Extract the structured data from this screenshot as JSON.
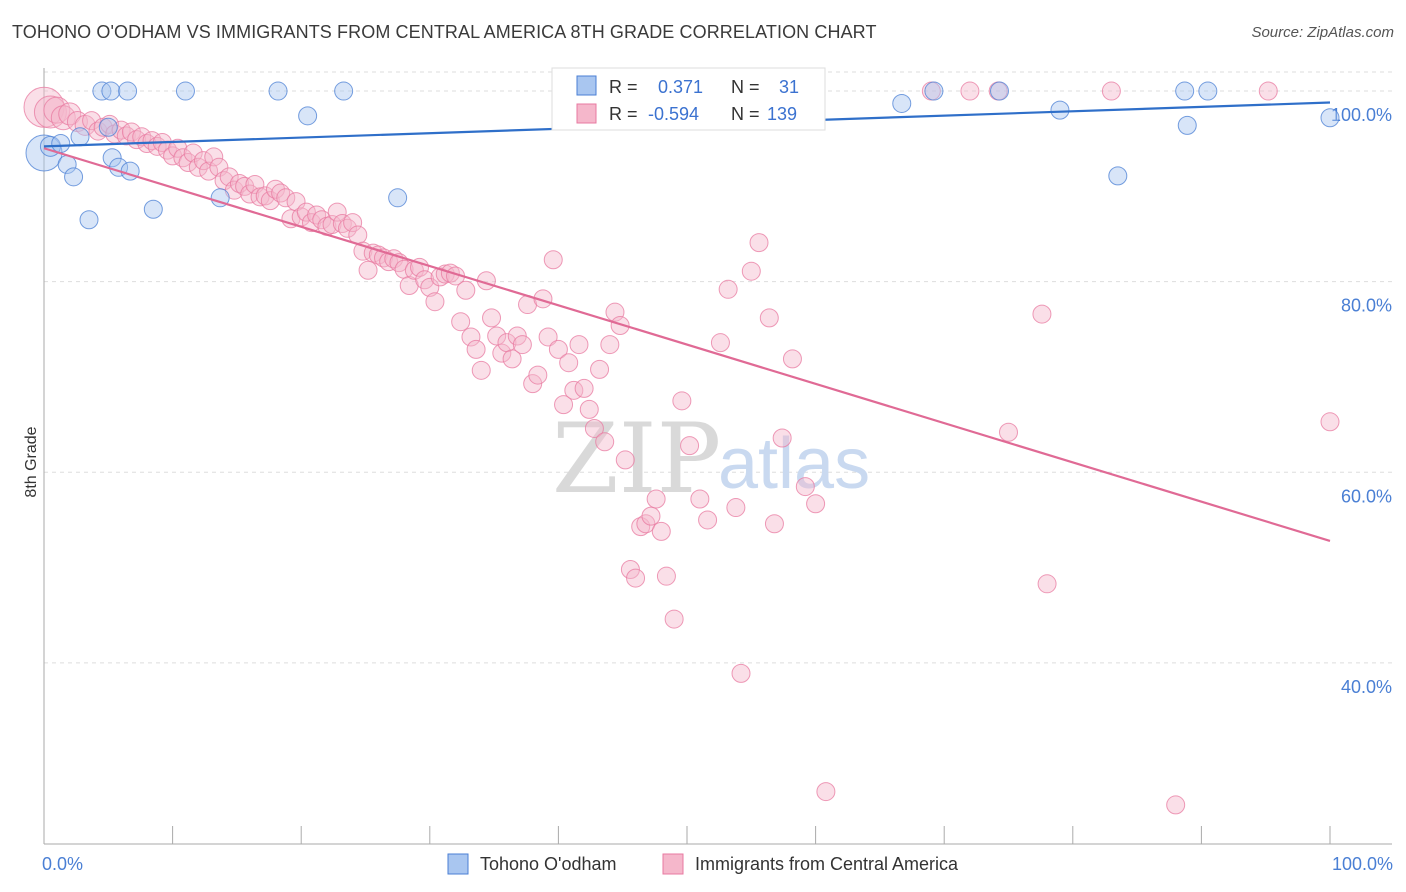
{
  "title": "TOHONO O'ODHAM VS IMMIGRANTS FROM CENTRAL AMERICA 8TH GRADE CORRELATION CHART",
  "source": "Source: ZipAtlas.com",
  "watermark": {
    "zip": "ZIP",
    "atlas": "atlas"
  },
  "colors": {
    "blue": "#4a7fd4",
    "blue_fill": "#a9c6f0",
    "blue_line": "#2f6fc9",
    "pink": "#e87aa0",
    "pink_fill": "#f5b7cb",
    "pink_line": "#e06a95",
    "grid": "#dddddd"
  },
  "stats": {
    "r_label": "R =",
    "n_label": "N =",
    "blue": {
      "r": "0.371",
      "n": "31"
    },
    "pink": {
      "r": "-0.594",
      "n": "139"
    }
  },
  "legend": {
    "blue": "Tohono O'odham",
    "pink": "Immigrants from Central America"
  },
  "chart_data": {
    "type": "scatter",
    "title": "TOHONO O'ODHAM VS IMMIGRANTS FROM CENTRAL AMERICA 8TH GRADE CORRELATION CHART",
    "xlabel": "",
    "ylabel": "8th Grade",
    "xlim": [
      0,
      100
    ],
    "ylim": [
      21,
      102
    ],
    "x_tick_labels": [
      "0.0%",
      "100.0%"
    ],
    "y_ticks": [
      40,
      60,
      80,
      100
    ],
    "y_tick_labels": [
      "40.0%",
      "60.0%",
      "80.0%",
      "100.0%"
    ],
    "grid": true,
    "legend_position": "bottom",
    "series": [
      {
        "name": "Tohono O'odham",
        "color": "#4a7fd4",
        "trend": [
          [
            0,
            94.2
          ],
          [
            100,
            98.8
          ]
        ],
        "points": [
          [
            0,
            93.5,
            18
          ],
          [
            0.5,
            94.2,
            10
          ],
          [
            1.3,
            94.5,
            9
          ],
          [
            1.8,
            92.3,
            9
          ],
          [
            2.3,
            91.0,
            9
          ],
          [
            2.8,
            95.2,
            9
          ],
          [
            3.5,
            86.5,
            9
          ],
          [
            4.5,
            100,
            9
          ],
          [
            5.0,
            96.2,
            9
          ],
          [
            5.2,
            100,
            9
          ],
          [
            5.3,
            93.0,
            9
          ],
          [
            5.8,
            92.0,
            9
          ],
          [
            6.5,
            100,
            9
          ],
          [
            6.7,
            91.6,
            9
          ],
          [
            8.5,
            87.6,
            9
          ],
          [
            11.0,
            100,
            9
          ],
          [
            13.7,
            88.8,
            9
          ],
          [
            18.2,
            100,
            9
          ],
          [
            20.5,
            97.4,
            9
          ],
          [
            23.3,
            100,
            9
          ],
          [
            27.5,
            88.8,
            9
          ],
          [
            55.7,
            100,
            9
          ],
          [
            66.7,
            98.7,
            9
          ],
          [
            69.2,
            100,
            9
          ],
          [
            74.3,
            100,
            9
          ],
          [
            79.0,
            98.0,
            9
          ],
          [
            83.5,
            91.1,
            9
          ],
          [
            88.7,
            100,
            9
          ],
          [
            88.9,
            96.4,
            9
          ],
          [
            90.5,
            100,
            9
          ],
          [
            100,
            97.2,
            9
          ]
        ]
      },
      {
        "name": "Immigrants from Central America",
        "color": "#e87aa0",
        "trend": [
          [
            0,
            94.0
          ],
          [
            100,
            52.8
          ]
        ],
        "points": [
          [
            0,
            98.3,
            20
          ],
          [
            0.5,
            97.8,
            16
          ],
          [
            1.0,
            98.0,
            13
          ],
          [
            1.5,
            97.2,
            12
          ],
          [
            2.0,
            97.6,
            11
          ],
          [
            2.6,
            96.8,
            10
          ],
          [
            3.2,
            96.4,
            10
          ],
          [
            3.7,
            96.9,
            9
          ],
          [
            4.2,
            95.8,
            9
          ],
          [
            4.6,
            96.2,
            9
          ],
          [
            5.1,
            96.5,
            9
          ],
          [
            5.5,
            95.5,
            9
          ],
          [
            6.0,
            95.9,
            9
          ],
          [
            6.4,
            95.3,
            9
          ],
          [
            6.8,
            95.7,
            9
          ],
          [
            7.2,
            94.9,
            9
          ],
          [
            7.6,
            95.2,
            9
          ],
          [
            8.0,
            94.5,
            9
          ],
          [
            8.4,
            94.8,
            9
          ],
          [
            8.8,
            94.2,
            9
          ],
          [
            9.2,
            94.6,
            9
          ],
          [
            9.6,
            93.8,
            9
          ],
          [
            10.0,
            93.2,
            9
          ],
          [
            10.4,
            94.0,
            9
          ],
          [
            10.8,
            93.0,
            9
          ],
          [
            11.2,
            92.5,
            9
          ],
          [
            11.6,
            93.5,
            9
          ],
          [
            12.0,
            92.0,
            9
          ],
          [
            12.4,
            92.7,
            9
          ],
          [
            12.8,
            91.6,
            9
          ],
          [
            13.2,
            93.1,
            9
          ],
          [
            13.6,
            92.0,
            9
          ],
          [
            14.0,
            90.6,
            9
          ],
          [
            14.4,
            91.0,
            9
          ],
          [
            14.8,
            89.6,
            9
          ],
          [
            15.2,
            90.3,
            9
          ],
          [
            15.6,
            90.0,
            9
          ],
          [
            16.0,
            89.2,
            9
          ],
          [
            16.4,
            90.2,
            9
          ],
          [
            16.8,
            88.9,
            9
          ],
          [
            17.2,
            89.0,
            9
          ],
          [
            17.6,
            88.5,
            9
          ],
          [
            18.0,
            89.7,
            9
          ],
          [
            18.4,
            89.3,
            9
          ],
          [
            18.8,
            88.8,
            9
          ],
          [
            19.2,
            86.6,
            9
          ],
          [
            19.6,
            88.4,
            9
          ],
          [
            20.0,
            86.8,
            9
          ],
          [
            20.4,
            87.3,
            9
          ],
          [
            20.8,
            86.2,
            9
          ],
          [
            21.2,
            87.0,
            9
          ],
          [
            21.6,
            86.5,
            9
          ],
          [
            22.0,
            85.8,
            9
          ],
          [
            22.4,
            86.0,
            9
          ],
          [
            22.8,
            87.3,
            9
          ],
          [
            23.2,
            86.1,
            9
          ],
          [
            23.6,
            85.6,
            9
          ],
          [
            24.0,
            86.2,
            9
          ],
          [
            24.4,
            84.9,
            9
          ],
          [
            24.8,
            83.2,
            9
          ],
          [
            25.2,
            81.2,
            9
          ],
          [
            25.6,
            83.0,
            9
          ],
          [
            26.0,
            82.8,
            9
          ],
          [
            26.4,
            82.5,
            9
          ],
          [
            26.8,
            82.1,
            9
          ],
          [
            27.2,
            82.4,
            9
          ],
          [
            27.6,
            82.0,
            9
          ],
          [
            28.0,
            81.3,
            9
          ],
          [
            28.4,
            79.6,
            9
          ],
          [
            28.8,
            81.2,
            9
          ],
          [
            29.2,
            81.5,
            9
          ],
          [
            29.6,
            80.2,
            9
          ],
          [
            30.0,
            79.4,
            9
          ],
          [
            30.4,
            77.9,
            9
          ],
          [
            30.8,
            80.5,
            9
          ],
          [
            31.2,
            80.8,
            9
          ],
          [
            31.6,
            80.9,
            9
          ],
          [
            32.0,
            80.6,
            9
          ],
          [
            32.4,
            75.8,
            9
          ],
          [
            32.8,
            79.1,
            9
          ],
          [
            33.2,
            74.2,
            9
          ],
          [
            33.6,
            72.9,
            9
          ],
          [
            34.0,
            70.7,
            9
          ],
          [
            34.4,
            80.1,
            9
          ],
          [
            34.8,
            76.2,
            9
          ],
          [
            35.2,
            74.3,
            9
          ],
          [
            35.6,
            72.5,
            9
          ],
          [
            36.0,
            73.6,
            9
          ],
          [
            36.4,
            71.9,
            9
          ],
          [
            36.8,
            74.3,
            9
          ],
          [
            37.2,
            73.4,
            9
          ],
          [
            37.6,
            77.6,
            9
          ],
          [
            38.0,
            69.3,
            9
          ],
          [
            38.4,
            70.2,
            9
          ],
          [
            38.8,
            78.2,
            9
          ],
          [
            39.2,
            74.2,
            9
          ],
          [
            39.6,
            82.3,
            9
          ],
          [
            40.0,
            72.9,
            9
          ],
          [
            40.4,
            67.1,
            9
          ],
          [
            40.8,
            71.5,
            9
          ],
          [
            41.2,
            68.6,
            9
          ],
          [
            41.6,
            73.4,
            9
          ],
          [
            42.0,
            68.8,
            9
          ],
          [
            42.4,
            66.6,
            9
          ],
          [
            42.8,
            64.6,
            9
          ],
          [
            43.2,
            70.8,
            9
          ],
          [
            43.6,
            63.2,
            9
          ],
          [
            44.0,
            73.4,
            9
          ],
          [
            44.4,
            76.8,
            9
          ],
          [
            44.8,
            75.4,
            9
          ],
          [
            45.2,
            61.3,
            9
          ],
          [
            45.6,
            49.8,
            9
          ],
          [
            46.0,
            48.9,
            9
          ],
          [
            46.4,
            54.3,
            9
          ],
          [
            46.8,
            54.6,
            9
          ],
          [
            47.2,
            55.4,
            9
          ],
          [
            47.6,
            57.2,
            9
          ],
          [
            48.0,
            53.8,
            9
          ],
          [
            48.4,
            49.1,
            9
          ],
          [
            49.0,
            44.6,
            9
          ],
          [
            49.6,
            67.5,
            9
          ],
          [
            50.2,
            62.8,
            9
          ],
          [
            51.0,
            57.2,
            9
          ],
          [
            51.6,
            55.0,
            9
          ],
          [
            52.6,
            73.6,
            9
          ],
          [
            53.2,
            79.2,
            9
          ],
          [
            53.8,
            56.3,
            9
          ],
          [
            54.2,
            38.9,
            9
          ],
          [
            55.0,
            81.1,
            9
          ],
          [
            55.6,
            84.1,
            9
          ],
          [
            56.4,
            76.2,
            9
          ],
          [
            56.8,
            54.6,
            9
          ],
          [
            57.4,
            63.6,
            9
          ],
          [
            58.2,
            71.9,
            9
          ],
          [
            59.2,
            58.5,
            9
          ],
          [
            60.0,
            56.7,
            9
          ],
          [
            60.8,
            26.5,
            9
          ],
          [
            69.0,
            100,
            9
          ],
          [
            72.0,
            100,
            9
          ],
          [
            74.2,
            100,
            9
          ],
          [
            75.0,
            64.2,
            9
          ],
          [
            77.6,
            76.6,
            9
          ],
          [
            78.0,
            48.3,
            9
          ],
          [
            83.0,
            100,
            9
          ],
          [
            88.0,
            25.1,
            9
          ],
          [
            95.2,
            100,
            9
          ],
          [
            100,
            65.3,
            9
          ]
        ]
      }
    ]
  }
}
